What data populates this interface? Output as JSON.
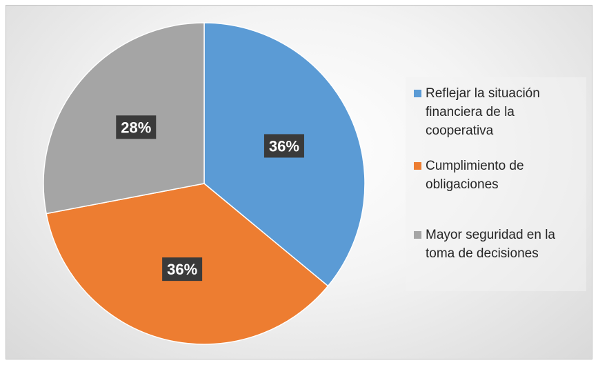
{
  "chart_data": {
    "type": "pie",
    "slices": [
      {
        "label": "Reflejar la situación financiera de la cooperativa",
        "value": 36,
        "value_label": "36%",
        "color": "#5B9BD5"
      },
      {
        "label": "Cumplimiento de obligaciones",
        "value": 36,
        "value_label": "36%",
        "color": "#ED7D31"
      },
      {
        "label": "Mayor seguridad en la toma de decisiones",
        "value": 28,
        "value_label": "28%",
        "color": "#A5A5A5"
      }
    ],
    "legend_position": "right",
    "data_label_style": "dark-box"
  },
  "legend": {
    "items": [
      {
        "label": "Reflejar la situación financiera de la cooperativa",
        "color": "#5B9BD5"
      },
      {
        "label": "Cumplimiento de obligaciones",
        "color": "#ED7D31"
      },
      {
        "label": "Mayor seguridad en la toma de decisiones",
        "color": "#A5A5A5"
      }
    ]
  }
}
